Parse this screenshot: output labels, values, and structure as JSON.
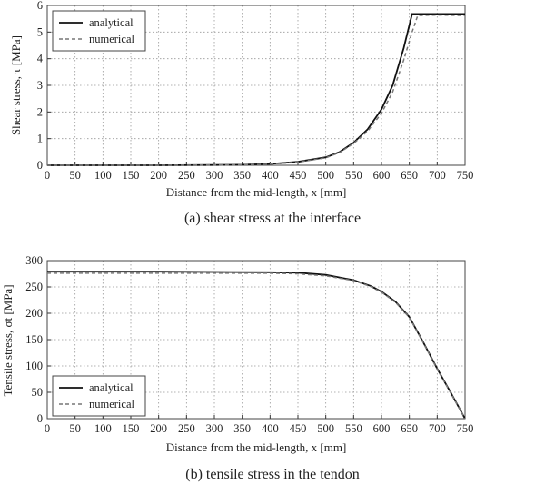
{
  "chart_data": [
    {
      "type": "line",
      "caption": "(a) shear stress at the interface",
      "xlabel": "Distance from the mid-length, x [mm]",
      "ylabel": "Shear stress, τ [MPa]",
      "xlim": [
        0,
        750
      ],
      "ylim": [
        0,
        6
      ],
      "xticks": [
        0,
        50,
        100,
        150,
        200,
        250,
        300,
        350,
        400,
        450,
        500,
        550,
        600,
        650,
        700,
        750
      ],
      "yticks": [
        0,
        1,
        2,
        3,
        4,
        5,
        6
      ],
      "grid": true,
      "legend": "top-left",
      "series": [
        {
          "name": "analytical",
          "style": "solid",
          "color": "#111111",
          "x": [
            0,
            100,
            200,
            300,
            350,
            400,
            450,
            500,
            525,
            550,
            575,
            600,
            620,
            640,
            655,
            700,
            750
          ],
          "y": [
            0,
            0,
            0,
            0.01,
            0.02,
            0.05,
            0.13,
            0.3,
            0.5,
            0.85,
            1.35,
            2.1,
            3.0,
            4.4,
            5.68,
            5.68,
            5.68
          ]
        },
        {
          "name": "numerical",
          "style": "dashed",
          "color": "#777777",
          "x": [
            0,
            100,
            200,
            300,
            350,
            400,
            450,
            500,
            525,
            550,
            575,
            600,
            620,
            640,
            655,
            665,
            700,
            750
          ],
          "y": [
            0,
            0,
            0,
            0.01,
            0.02,
            0.04,
            0.12,
            0.28,
            0.48,
            0.82,
            1.28,
            1.95,
            2.75,
            3.95,
            5.0,
            5.62,
            5.64,
            5.62
          ]
        }
      ]
    },
    {
      "type": "line",
      "caption": "(b) tensile stress in the tendon",
      "xlabel": "Distance from the mid-length, x [mm]",
      "ylabel": "Tensile stress, σt [MPa]",
      "xlim": [
        0,
        750
      ],
      "ylim": [
        0,
        300
      ],
      "xticks": [
        0,
        50,
        100,
        150,
        200,
        250,
        300,
        350,
        400,
        450,
        500,
        550,
        600,
        650,
        700,
        750
      ],
      "yticks": [
        0,
        50,
        100,
        150,
        200,
        250,
        300
      ],
      "grid": true,
      "legend": "bottom-left",
      "series": [
        {
          "name": "analytical",
          "style": "solid",
          "color": "#111111",
          "x": [
            0,
            200,
            400,
            450,
            500,
            550,
            580,
            600,
            625,
            650,
            675,
            700,
            725,
            750
          ],
          "y": [
            279,
            279,
            278,
            277,
            273,
            263,
            252,
            241,
            222,
            193,
            145,
            95,
            48,
            0
          ]
        },
        {
          "name": "numerical",
          "style": "dashed",
          "color": "#777777",
          "x": [
            0,
            200,
            400,
            450,
            500,
            550,
            580,
            600,
            625,
            650,
            675,
            700,
            725,
            750
          ],
          "y": [
            276,
            276,
            276,
            275,
            271,
            262,
            251,
            240,
            221,
            192,
            144,
            94,
            47,
            0
          ]
        }
      ]
    }
  ]
}
